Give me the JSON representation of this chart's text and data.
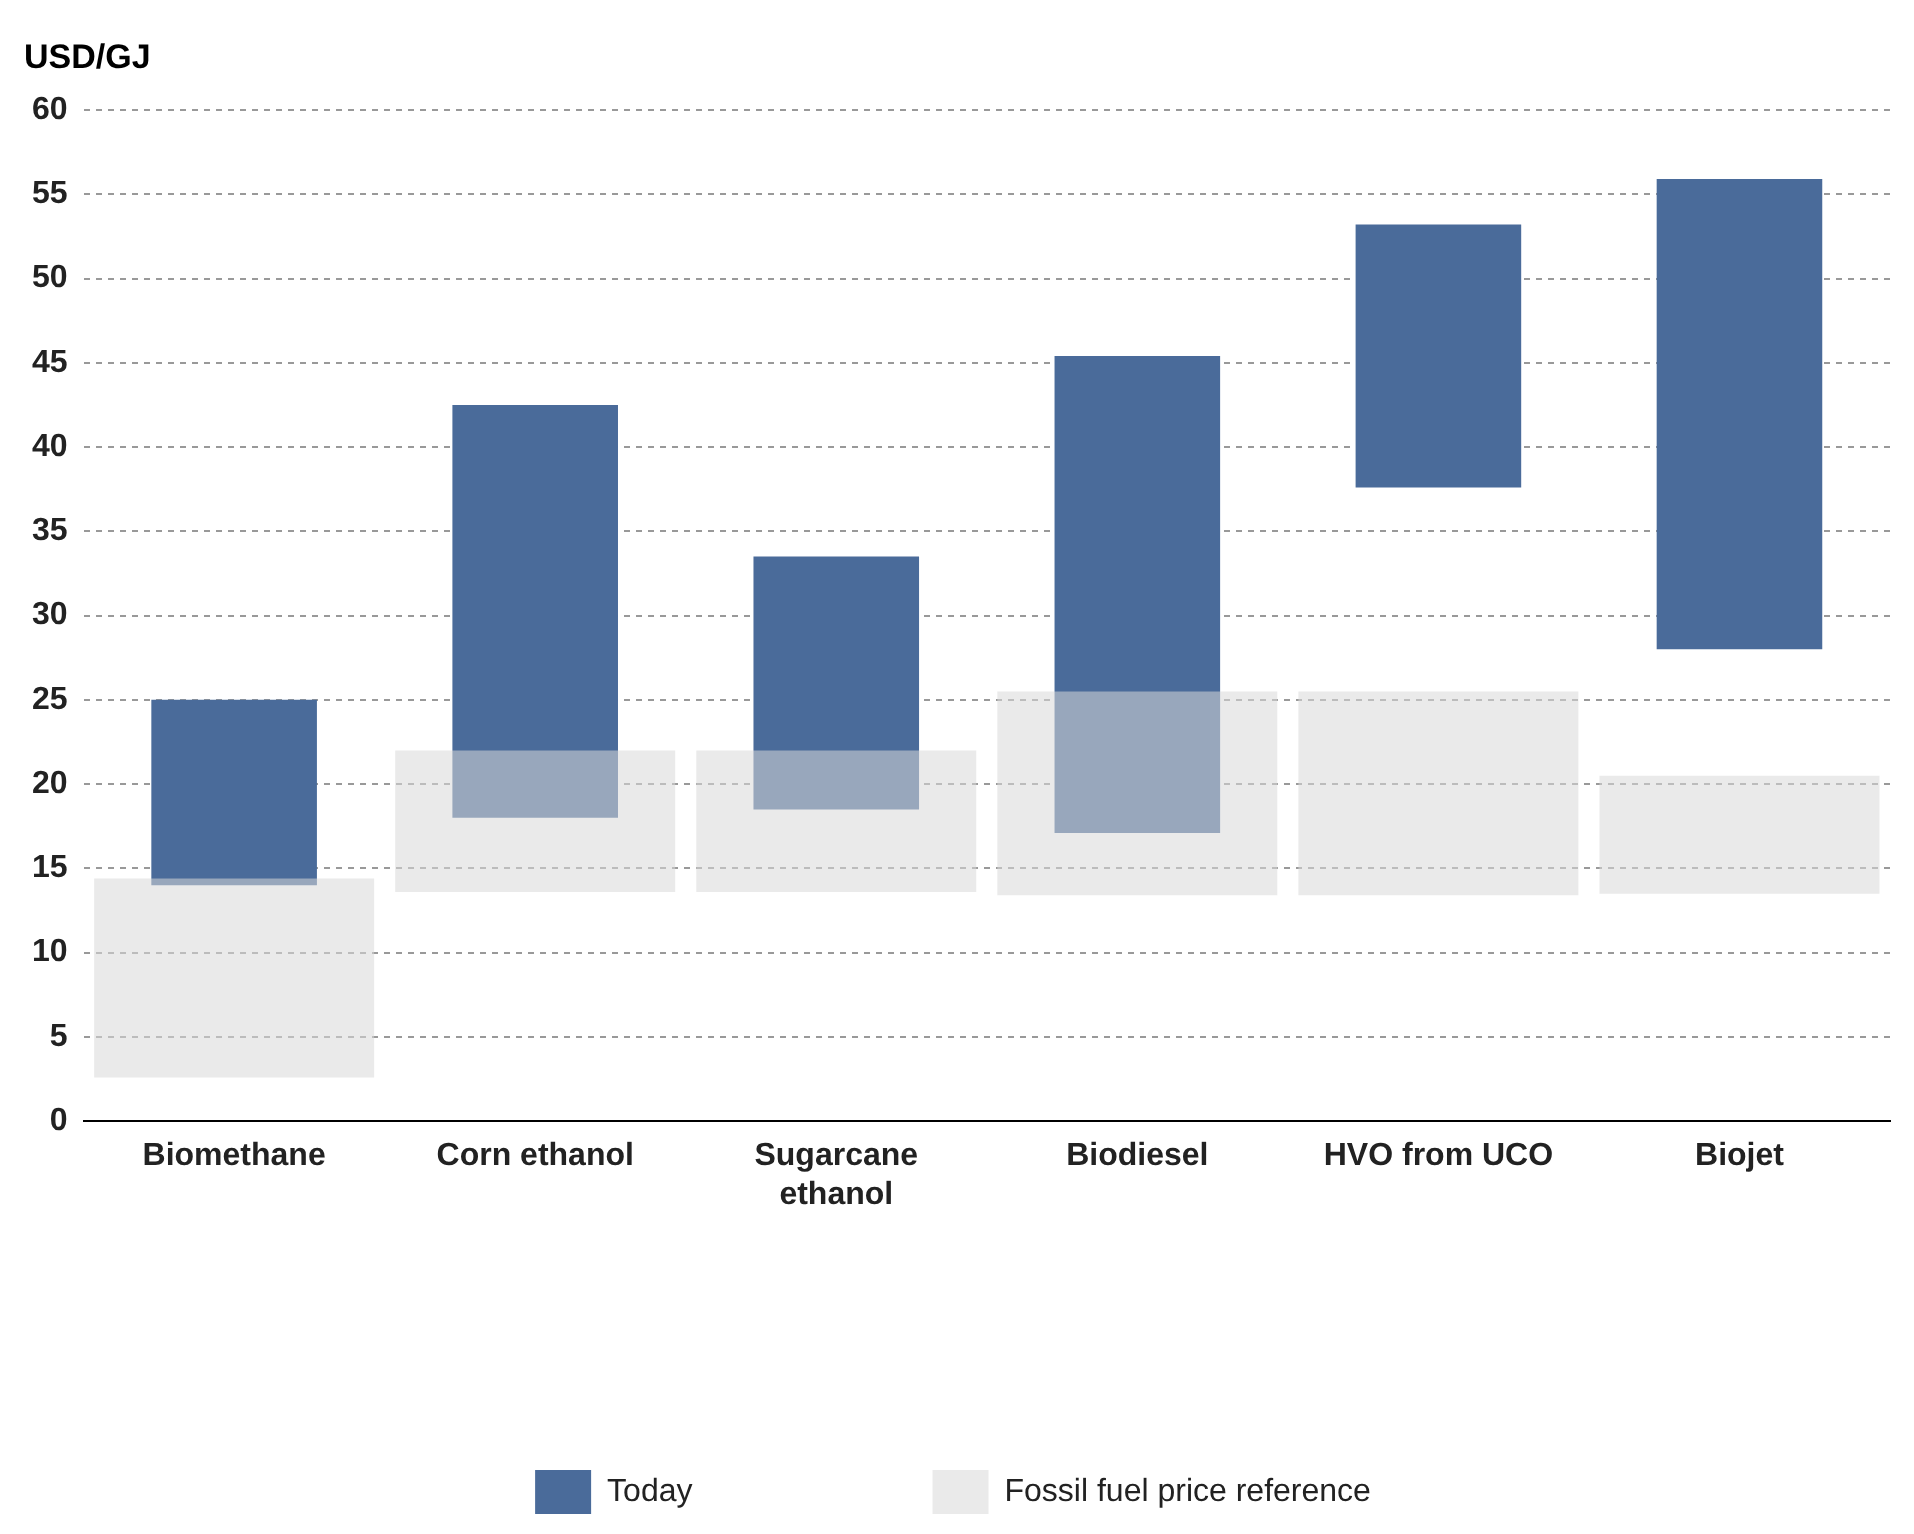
{
  "chart_data": {
    "type": "bar",
    "ylabel": "USD/GJ",
    "categories": [
      "Biomethane",
      "Corn ethanol",
      "Sugarcane ethanol",
      "Biodiesel",
      "HVO from UCO",
      "Biojet"
    ],
    "series": [
      {
        "name": "Today",
        "color": "#4a6b9a",
        "base": [
          14,
          18,
          18.5,
          17.1,
          37.6,
          28
        ],
        "values": [
          11,
          24.5,
          15,
          28.3,
          15.6,
          27.9
        ]
      },
      {
        "name": "Fossil fuel price reference",
        "color": "#d9d9d9",
        "base": [
          2.6,
          13.6,
          13.6,
          13.4,
          13.4,
          13.5
        ],
        "values": [
          11.8,
          8.4,
          8.4,
          12.1,
          12.1,
          7
        ]
      }
    ],
    "ylim": [
      0,
      60
    ],
    "yticks": [
      0,
      5,
      10,
      15,
      20,
      25,
      30,
      35,
      40,
      45,
      50,
      55,
      60
    ],
    "grid": "y",
    "legend": "bottom"
  }
}
